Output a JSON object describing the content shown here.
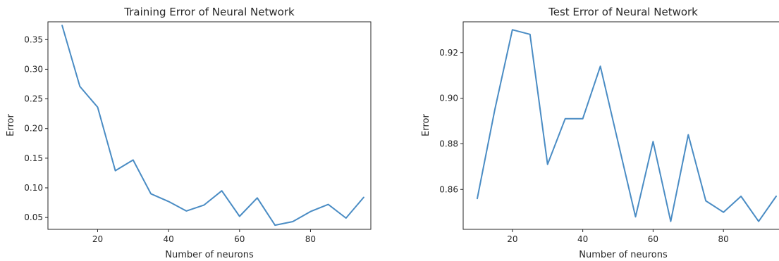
{
  "chart_data": [
    {
      "type": "line",
      "title": "Training Error of Neural Network",
      "xlabel": "Number of neurons",
      "ylabel": "Error",
      "xlim": [
        6,
        97
      ],
      "ylim": [
        0.03,
        0.38
      ],
      "xticks": [
        20,
        40,
        60,
        80
      ],
      "yticks": [
        0.05,
        0.1,
        0.15,
        0.2,
        0.25,
        0.3,
        0.35
      ],
      "ytick_labels": [
        "0.05",
        "0.10",
        "0.15",
        "0.20",
        "0.25",
        "0.30",
        "0.35"
      ],
      "grid": false,
      "color": "#4a8cc4",
      "x": [
        10,
        15,
        20,
        25,
        30,
        35,
        40,
        45,
        50,
        55,
        60,
        65,
        70,
        75,
        80,
        85,
        90,
        95
      ],
      "y": [
        0.374,
        0.271,
        0.236,
        0.129,
        0.147,
        0.09,
        0.077,
        0.061,
        0.071,
        0.095,
        0.052,
        0.083,
        0.037,
        0.043,
        0.06,
        0.072,
        0.049,
        0.084
      ]
    },
    {
      "type": "line",
      "title": "Test Error of Neural Network",
      "xlabel": "Number of neurons",
      "ylabel": "Error",
      "xlim": [
        6,
        97
      ],
      "ylim": [
        0.8425,
        0.9335
      ],
      "xticks": [
        20,
        40,
        60,
        80
      ],
      "yticks": [
        0.86,
        0.88,
        0.9,
        0.92
      ],
      "ytick_labels": [
        "0.86",
        "0.88",
        "0.90",
        "0.92"
      ],
      "grid": false,
      "color": "#4a8cc4",
      "x": [
        10,
        15,
        20,
        25,
        30,
        35,
        40,
        45,
        50,
        55,
        60,
        65,
        70,
        75,
        80,
        85,
        90,
        95
      ],
      "y": [
        0.856,
        0.895,
        0.93,
        0.928,
        0.871,
        0.891,
        0.891,
        0.914,
        0.881,
        0.848,
        0.881,
        0.846,
        0.884,
        0.855,
        0.85,
        0.857,
        0.846,
        0.857
      ]
    }
  ]
}
